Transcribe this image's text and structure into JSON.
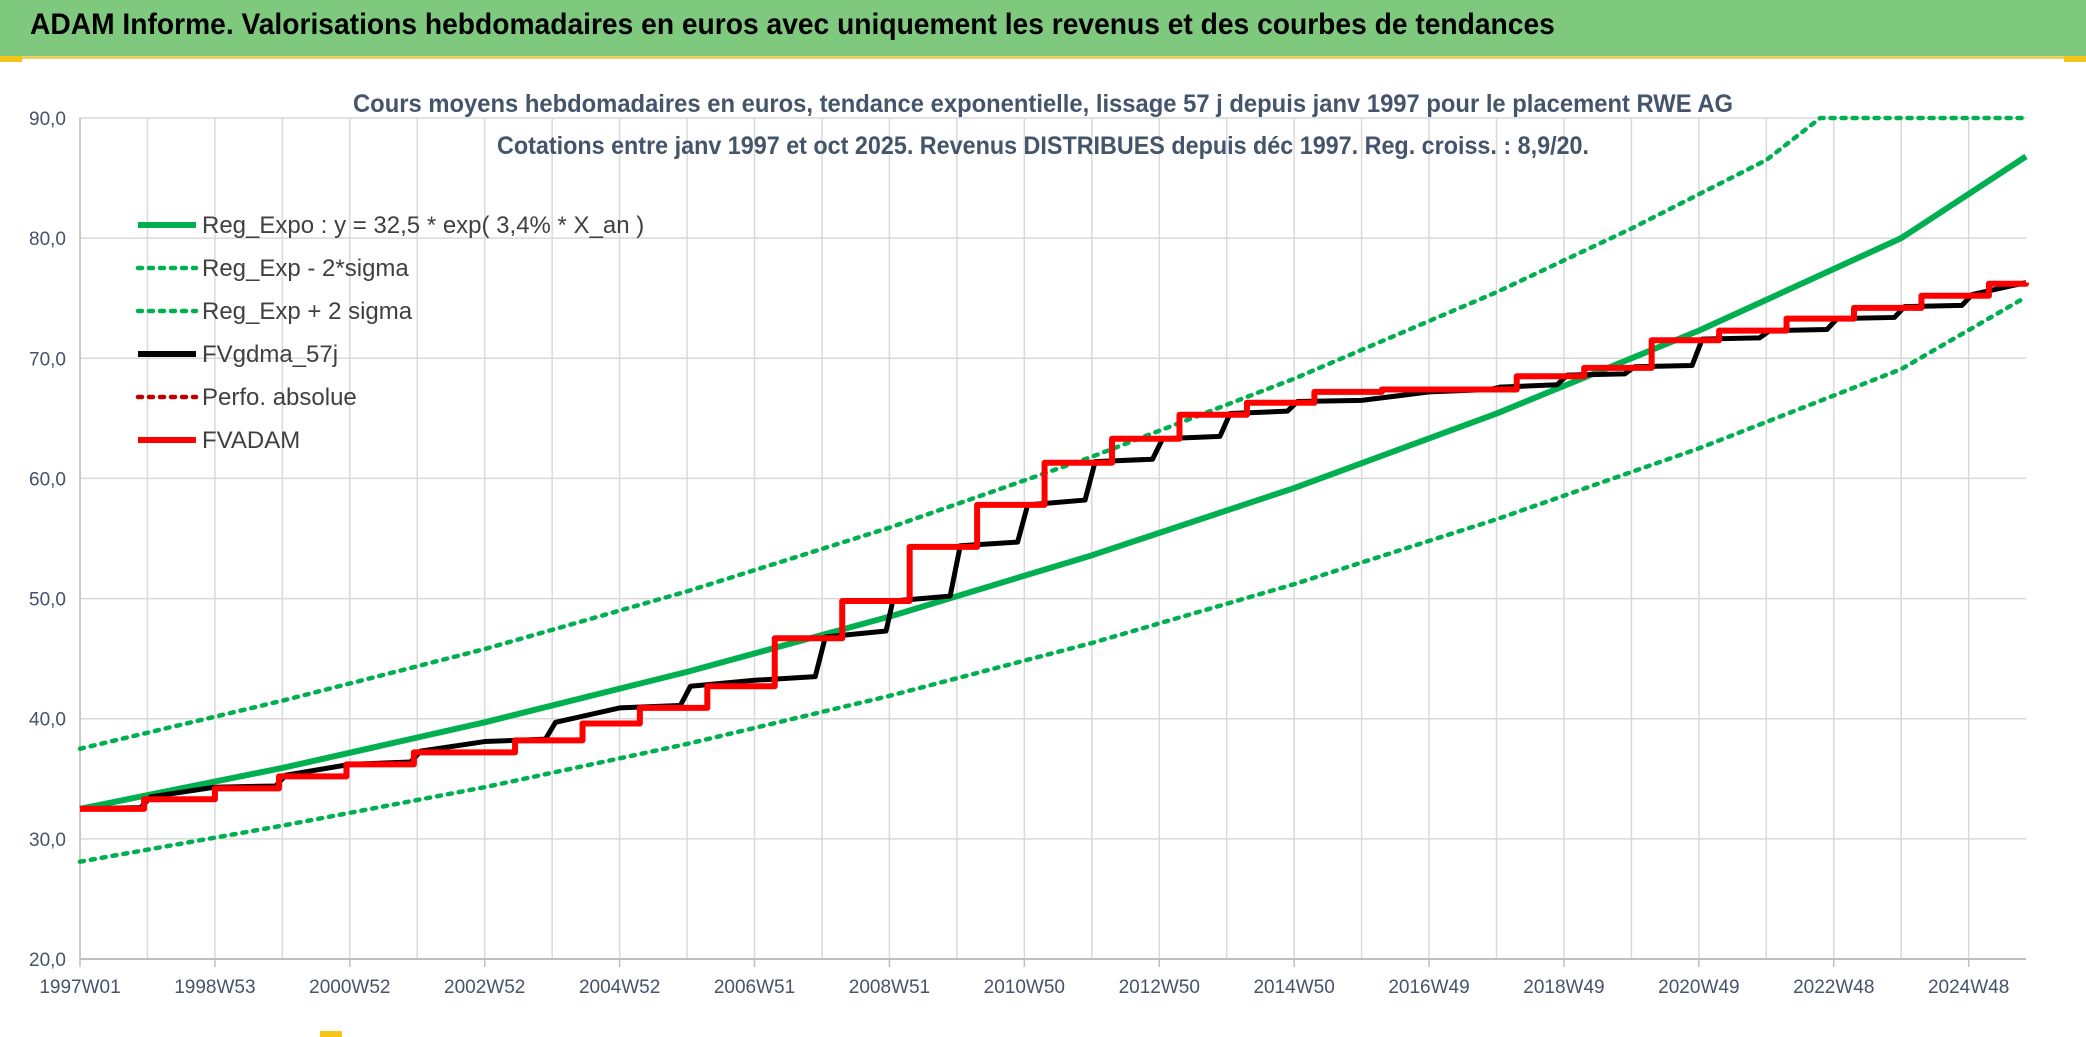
{
  "header": {
    "title": "ADAM Informe. Valorisations hebdomadaires en euros avec uniquement les revenus et des courbes de tendances"
  },
  "colors": {
    "header_bg": "#7fc97f",
    "green": "#00b050",
    "red": "#ff0000",
    "black": "#000000",
    "grid": "#d9d9d9",
    "axis_text": "#44546a"
  },
  "chart_data": {
    "type": "line",
    "title": "Cours moyens hebdomadaires en euros, tendance exponentielle, lissage 57 j depuis janv 1997 pour le placement RWE AG",
    "subtitle": "Cotations entre janv 1997 et oct 2025. Revenus DISTRIBUES depuis déc 1997. Reg. croiss. : 8,9/20.",
    "xlabel": "",
    "ylabel": "",
    "ylim": [
      20,
      90
    ],
    "yticks": [
      "20,0",
      "30,0",
      "40,0",
      "50,0",
      "60,0",
      "70,0",
      "80,0",
      "90,0"
    ],
    "xlim": [
      1997.0,
      2025.85
    ],
    "xtick_labels": [
      "1997W01",
      "1998W53",
      "2000W52",
      "2002W52",
      "2004W52",
      "2006W51",
      "2008W51",
      "2010W50",
      "2012W50",
      "2014W50",
      "2016W49",
      "2018W49",
      "2020W49",
      "2022W48",
      "2024W48"
    ],
    "xtick_positions": [
      1997.0,
      1999.0,
      2001.0,
      2003.0,
      2005.0,
      2007.0,
      2009.0,
      2011.0,
      2013.0,
      2015.0,
      2017.0,
      2019.0,
      2021.0,
      2023.0,
      2025.0
    ],
    "grid": true,
    "legend_position": "top-left",
    "series": [
      {
        "name": "Reg_Expo : y = 32,5 * exp( 3,4% *  X_an )",
        "color": "#00b050",
        "style": "solid",
        "x": [
          1997.0,
          2000.0,
          2003.0,
          2006.0,
          2009.0,
          2012.0,
          2015.0,
          2018.0,
          2021.0,
          2024.0,
          2025.85
        ],
        "y": [
          32.5,
          35.9,
          39.7,
          43.9,
          48.5,
          53.6,
          59.2,
          65.4,
          72.3,
          80.0,
          86.8
        ]
      },
      {
        "name": "Reg_Exp - 2*sigma",
        "color": "#00b050",
        "style": "dotted",
        "x": [
          1997.0,
          2000.0,
          2003.0,
          2006.0,
          2009.0,
          2012.0,
          2015.0,
          2018.0,
          2021.0,
          2024.0,
          2025.85
        ],
        "y": [
          28.1,
          31.1,
          34.3,
          37.9,
          41.9,
          46.3,
          51.2,
          56.6,
          62.5,
          69.1,
          75.1
        ]
      },
      {
        "name": "Reg_Exp + 2 sigma",
        "color": "#00b050",
        "style": "dotted",
        "x": [
          1997.0,
          2000.0,
          2003.0,
          2006.0,
          2009.0,
          2012.0,
          2015.0,
          2018.0,
          2020.0,
          2022.0,
          2022.8,
          2025.85
        ],
        "y": [
          37.5,
          41.5,
          45.8,
          50.6,
          55.9,
          61.8,
          68.3,
          75.5,
          80.8,
          86.5,
          90.0,
          90.0
        ]
      },
      {
        "name": "FVgdma_57j",
        "color": "#000000",
        "style": "solid",
        "x": [
          1997.0,
          1997.9,
          1998.05,
          1999.0,
          1999.9,
          2000.05,
          2001.0,
          2001.9,
          2002.05,
          2003.0,
          2003.9,
          2004.05,
          2005.0,
          2005.9,
          2006.05,
          2007.0,
          2007.9,
          2008.05,
          2008.95,
          2009.05,
          2009.9,
          2010.05,
          2010.9,
          2011.05,
          2011.9,
          2012.05,
          2012.9,
          2013.05,
          2013.9,
          2014.05,
          2014.9,
          2015.05,
          2016.0,
          2017.0,
          2017.9,
          2018.05,
          2018.9,
          2019.05,
          2019.9,
          2020.05,
          2020.9,
          2021.05,
          2021.9,
          2022.05,
          2022.9,
          2023.05,
          2023.9,
          2024.05,
          2024.9,
          2025.05,
          2025.85
        ],
        "y": [
          32.5,
          32.6,
          33.5,
          34.3,
          34.4,
          35.3,
          36.2,
          36.4,
          37.3,
          38.1,
          38.3,
          39.7,
          40.9,
          41.1,
          42.7,
          43.2,
          43.5,
          46.8,
          47.3,
          49.8,
          50.2,
          54.4,
          54.7,
          57.8,
          58.2,
          61.4,
          61.6,
          63.3,
          63.5,
          65.4,
          65.6,
          66.4,
          66.5,
          67.2,
          67.4,
          67.6,
          67.8,
          68.6,
          68.7,
          69.3,
          69.4,
          71.6,
          71.7,
          72.3,
          72.4,
          73.3,
          73.4,
          74.3,
          74.4,
          75.3,
          76.3
        ]
      },
      {
        "name": "Perfo. absolue",
        "color": "#c00000",
        "style": "dotted",
        "x": [],
        "y": []
      },
      {
        "name": "FVADAM",
        "color": "#ff0000",
        "style": "solid",
        "step": true,
        "x": [
          1997.0,
          1997.95,
          1999.0,
          1999.95,
          2000.95,
          2001.95,
          2003.45,
          2004.45,
          2005.3,
          2006.3,
          2007.3,
          2008.3,
          2009.3,
          2010.3,
          2011.3,
          2012.3,
          2013.3,
          2014.3,
          2015.3,
          2016.3,
          2017.3,
          2018.3,
          2019.3,
          2020.3,
          2021.3,
          2022.3,
          2023.3,
          2024.3,
          2025.3,
          2025.85
        ],
        "y": [
          32.5,
          33.3,
          34.2,
          35.2,
          36.2,
          37.2,
          38.2,
          39.6,
          40.9,
          42.7,
          46.7,
          49.8,
          54.3,
          57.8,
          61.3,
          63.3,
          65.3,
          66.3,
          67.2,
          67.4,
          67.4,
          68.5,
          69.2,
          71.5,
          72.3,
          73.3,
          74.2,
          75.2,
          76.2,
          76.3
        ]
      }
    ]
  }
}
